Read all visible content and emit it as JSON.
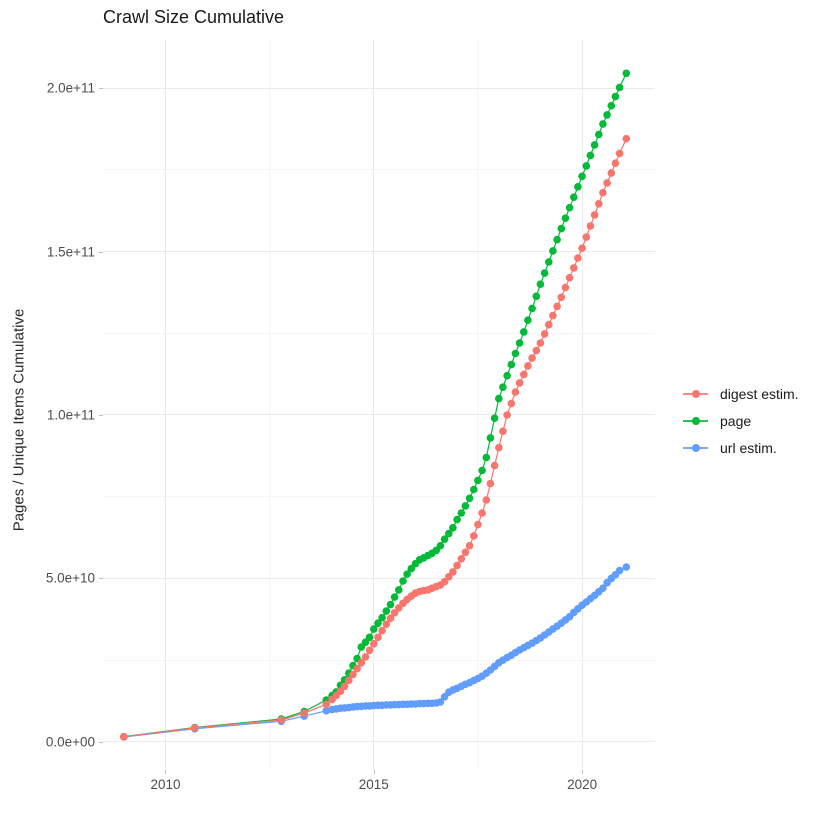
{
  "title": "Crawl Size Cumulative",
  "colors": {
    "digest": "#F8766D",
    "page": "#00BA38",
    "url": "#619CFF",
    "grid_major": "#EBEBEB",
    "grid_minor": "#F5F5F5",
    "tick_text": "#4D4D4D",
    "text": "#1A1A1A",
    "background": "#FFFFFF"
  },
  "chart_data": {
    "type": "line",
    "title": "Crawl Size Cumulative",
    "xlabel": "",
    "ylabel": "Pages / Unique Items Cumulative",
    "legend_position": "right",
    "grid": true,
    "x_domain": [
      2008.5,
      2021.75
    ],
    "y_domain_billions": [
      -8.6,
      214.7
    ],
    "x_ticks": {
      "major": [
        2010,
        2015,
        2020
      ],
      "minor": [
        2012.5,
        2017.5
      ],
      "labels": [
        "2010",
        "2015",
        "2020"
      ]
    },
    "y_ticks": {
      "major_billions": [
        0,
        50,
        100,
        150,
        200
      ],
      "minor_billions": [
        25,
        75,
        125,
        175
      ],
      "labels": [
        "0.0e+00",
        "5.0e+10",
        "1.0e+11",
        "1.5e+11",
        "2.0e+11"
      ]
    },
    "value_unit": "pages (billions, 1e9)",
    "series": [
      {
        "name": "digest estim.",
        "color": "#F8766D",
        "points_year_billions": [
          [
            2009.0,
            1.6
          ],
          [
            2010.7,
            4.3
          ],
          [
            2012.78,
            6.7
          ],
          [
            2013.33,
            8.8
          ],
          [
            2013.86,
            11.5
          ],
          [
            2014.0,
            13.0
          ],
          [
            2014.1,
            14.2
          ],
          [
            2014.2,
            15.5
          ],
          [
            2014.3,
            17.0
          ],
          [
            2014.4,
            18.8
          ],
          [
            2014.5,
            20.6
          ],
          [
            2014.6,
            22.4
          ],
          [
            2014.7,
            24.2
          ],
          [
            2014.8,
            26.0
          ],
          [
            2014.9,
            28.0
          ],
          [
            2015.0,
            30.0
          ],
          [
            2015.1,
            32.0
          ],
          [
            2015.2,
            34.0
          ],
          [
            2015.3,
            36.0
          ],
          [
            2015.4,
            37.8
          ],
          [
            2015.5,
            39.5
          ],
          [
            2015.6,
            41.0
          ],
          [
            2015.7,
            42.4
          ],
          [
            2015.8,
            43.6
          ],
          [
            2015.9,
            44.6
          ],
          [
            2016.0,
            45.5
          ],
          [
            2016.1,
            46.0
          ],
          [
            2016.2,
            46.3
          ],
          [
            2016.3,
            46.5
          ],
          [
            2016.4,
            47.0
          ],
          [
            2016.5,
            47.5
          ],
          [
            2016.6,
            48.0
          ],
          [
            2016.7,
            49.0
          ],
          [
            2016.8,
            50.5
          ],
          [
            2016.9,
            52.0
          ],
          [
            2017.0,
            54.0
          ],
          [
            2017.1,
            56.0
          ],
          [
            2017.2,
            58.0
          ],
          [
            2017.3,
            60.0
          ],
          [
            2017.4,
            63.0
          ],
          [
            2017.5,
            66.5
          ],
          [
            2017.6,
            70.0
          ],
          [
            2017.7,
            74.0
          ],
          [
            2017.8,
            79.0
          ],
          [
            2017.9,
            84.5
          ],
          [
            2018.0,
            90.0
          ],
          [
            2018.1,
            95.0
          ],
          [
            2018.2,
            100.0
          ],
          [
            2018.3,
            103.5
          ],
          [
            2018.4,
            107.0
          ],
          [
            2018.5,
            109.8
          ],
          [
            2018.6,
            112.4
          ],
          [
            2018.7,
            115.0
          ],
          [
            2018.8,
            117.4
          ],
          [
            2018.9,
            119.7
          ],
          [
            2019.0,
            122.0
          ],
          [
            2019.1,
            124.8
          ],
          [
            2019.2,
            127.6
          ],
          [
            2019.3,
            130.4
          ],
          [
            2019.4,
            133.2
          ],
          [
            2019.5,
            136.0
          ],
          [
            2019.6,
            139.0
          ],
          [
            2019.7,
            142.0
          ],
          [
            2019.8,
            145.0
          ],
          [
            2019.9,
            148.0
          ],
          [
            2020.0,
            151.0
          ],
          [
            2020.1,
            154.4
          ],
          [
            2020.2,
            157.8
          ],
          [
            2020.3,
            161.2
          ],
          [
            2020.4,
            164.6
          ],
          [
            2020.5,
            168.0
          ],
          [
            2020.6,
            171.0
          ],
          [
            2020.7,
            174.0
          ],
          [
            2020.8,
            177.0
          ],
          [
            2020.9,
            180.0
          ],
          [
            2021.06,
            184.5
          ]
        ]
      },
      {
        "name": "page",
        "color": "#00BA38",
        "points_year_billions": [
          [
            2009.0,
            1.6
          ],
          [
            2010.7,
            4.4
          ],
          [
            2012.78,
            7.0
          ],
          [
            2013.33,
            9.3
          ],
          [
            2013.86,
            12.8
          ],
          [
            2014.0,
            14.2
          ],
          [
            2014.1,
            15.3
          ],
          [
            2014.2,
            17.3
          ],
          [
            2014.3,
            19.0
          ],
          [
            2014.4,
            21.0
          ],
          [
            2014.5,
            23.3
          ],
          [
            2014.6,
            25.5
          ],
          [
            2014.7,
            29.0
          ],
          [
            2014.8,
            30.5
          ],
          [
            2014.9,
            32.0
          ],
          [
            2015.0,
            34.5
          ],
          [
            2015.1,
            36.3
          ],
          [
            2015.2,
            38.0
          ],
          [
            2015.3,
            40.0
          ],
          [
            2015.4,
            42.0
          ],
          [
            2015.5,
            44.3
          ],
          [
            2015.6,
            46.5
          ],
          [
            2015.7,
            49.2
          ],
          [
            2015.8,
            51.3
          ],
          [
            2015.9,
            53.0
          ],
          [
            2016.0,
            54.5
          ],
          [
            2016.1,
            55.7
          ],
          [
            2016.2,
            56.3
          ],
          [
            2016.3,
            57.0
          ],
          [
            2016.4,
            57.7
          ],
          [
            2016.5,
            58.6
          ],
          [
            2016.6,
            60.0
          ],
          [
            2016.7,
            62.0
          ],
          [
            2016.8,
            63.7
          ],
          [
            2016.9,
            65.5
          ],
          [
            2017.0,
            68.0
          ],
          [
            2017.1,
            70.0
          ],
          [
            2017.2,
            72.2
          ],
          [
            2017.3,
            74.5
          ],
          [
            2017.4,
            77.2
          ],
          [
            2017.5,
            80.0
          ],
          [
            2017.6,
            83.0
          ],
          [
            2017.7,
            87.0
          ],
          [
            2017.8,
            93.0
          ],
          [
            2017.9,
            99.0
          ],
          [
            2018.0,
            105.0
          ],
          [
            2018.1,
            108.5
          ],
          [
            2018.2,
            112.0
          ],
          [
            2018.3,
            115.4
          ],
          [
            2018.4,
            118.8
          ],
          [
            2018.5,
            122.0
          ],
          [
            2018.6,
            125.4
          ],
          [
            2018.7,
            129.0
          ],
          [
            2018.8,
            132.6
          ],
          [
            2018.9,
            136.3
          ],
          [
            2019.0,
            140.0
          ],
          [
            2019.1,
            143.4
          ],
          [
            2019.2,
            146.8
          ],
          [
            2019.3,
            150.2
          ],
          [
            2019.4,
            153.6
          ],
          [
            2019.5,
            157.0
          ],
          [
            2019.6,
            160.2
          ],
          [
            2019.7,
            163.4
          ],
          [
            2019.8,
            166.6
          ],
          [
            2019.9,
            169.8
          ],
          [
            2020.0,
            173.0
          ],
          [
            2020.1,
            176.2
          ],
          [
            2020.2,
            179.4
          ],
          [
            2020.3,
            182.6
          ],
          [
            2020.4,
            185.8
          ],
          [
            2020.5,
            189.0
          ],
          [
            2020.6,
            191.8
          ],
          [
            2020.7,
            194.6
          ],
          [
            2020.8,
            197.4
          ],
          [
            2020.9,
            200.2
          ],
          [
            2021.06,
            204.5
          ]
        ]
      },
      {
        "name": "url estim.",
        "color": "#619CFF",
        "points_year_billions": [
          [
            2009.0,
            1.5
          ],
          [
            2010.7,
            4.0
          ],
          [
            2012.78,
            6.3
          ],
          [
            2013.33,
            7.9
          ],
          [
            2013.86,
            9.5
          ],
          [
            2014.0,
            9.9
          ],
          [
            2014.1,
            10.1
          ],
          [
            2014.2,
            10.3
          ],
          [
            2014.3,
            10.4
          ],
          [
            2014.4,
            10.5
          ],
          [
            2014.5,
            10.7
          ],
          [
            2014.6,
            10.8
          ],
          [
            2014.7,
            10.9
          ],
          [
            2014.8,
            11.0
          ],
          [
            2014.9,
            11.0
          ],
          [
            2015.0,
            11.1
          ],
          [
            2015.1,
            11.2
          ],
          [
            2015.2,
            11.2
          ],
          [
            2015.3,
            11.3
          ],
          [
            2015.4,
            11.3
          ],
          [
            2015.5,
            11.4
          ],
          [
            2015.6,
            11.4
          ],
          [
            2015.7,
            11.5
          ],
          [
            2015.8,
            11.5
          ],
          [
            2015.9,
            11.6
          ],
          [
            2016.0,
            11.6
          ],
          [
            2016.1,
            11.7
          ],
          [
            2016.2,
            11.7
          ],
          [
            2016.3,
            11.8
          ],
          [
            2016.4,
            11.8
          ],
          [
            2016.5,
            11.9
          ],
          [
            2016.6,
            12.2
          ],
          [
            2016.7,
            13.8
          ],
          [
            2016.8,
            15.2
          ],
          [
            2016.9,
            15.9
          ],
          [
            2017.0,
            16.4
          ],
          [
            2017.1,
            17.0
          ],
          [
            2017.2,
            17.6
          ],
          [
            2017.3,
            18.1
          ],
          [
            2017.4,
            18.8
          ],
          [
            2017.5,
            19.4
          ],
          [
            2017.6,
            20.1
          ],
          [
            2017.7,
            21.0
          ],
          [
            2017.8,
            22.0
          ],
          [
            2017.9,
            23.1
          ],
          [
            2018.0,
            24.2
          ],
          [
            2018.1,
            25.0
          ],
          [
            2018.2,
            25.8
          ],
          [
            2018.3,
            26.5
          ],
          [
            2018.4,
            27.3
          ],
          [
            2018.5,
            28.1
          ],
          [
            2018.6,
            28.8
          ],
          [
            2018.7,
            29.5
          ],
          [
            2018.8,
            30.2
          ],
          [
            2018.9,
            31.0
          ],
          [
            2019.0,
            31.8
          ],
          [
            2019.1,
            32.7
          ],
          [
            2019.2,
            33.6
          ],
          [
            2019.3,
            34.5
          ],
          [
            2019.4,
            35.4
          ],
          [
            2019.5,
            36.3
          ],
          [
            2019.6,
            37.3
          ],
          [
            2019.7,
            38.3
          ],
          [
            2019.8,
            39.6
          ],
          [
            2019.9,
            40.7
          ],
          [
            2020.0,
            41.8
          ],
          [
            2020.1,
            42.8
          ],
          [
            2020.2,
            43.8
          ],
          [
            2020.3,
            44.8
          ],
          [
            2020.4,
            45.9
          ],
          [
            2020.5,
            47.0
          ],
          [
            2020.6,
            48.7
          ],
          [
            2020.7,
            50.0
          ],
          [
            2020.8,
            51.1
          ],
          [
            2020.9,
            52.4
          ],
          [
            2021.06,
            53.5
          ]
        ]
      }
    ]
  }
}
